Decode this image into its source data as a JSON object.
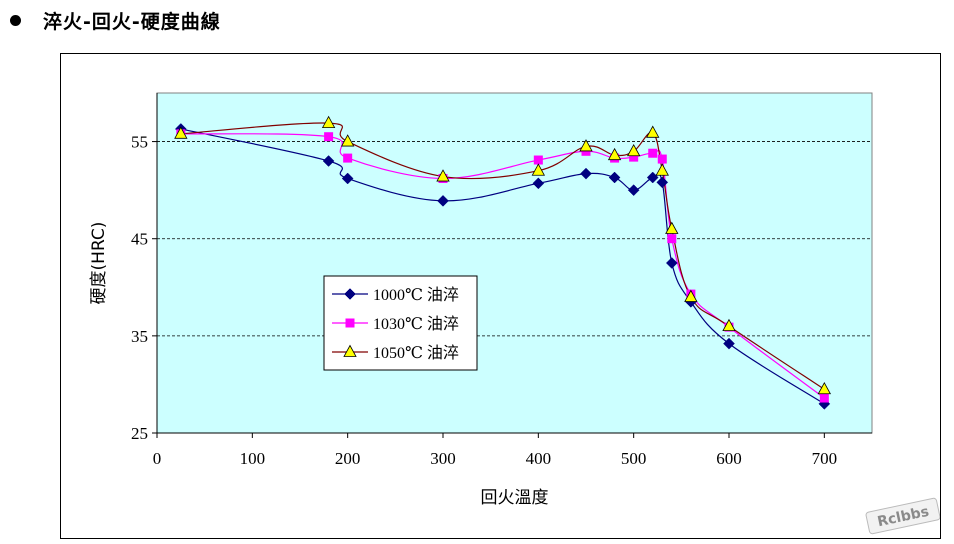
{
  "heading": {
    "text": "淬火-回火-硬度曲線"
  },
  "watermark": {
    "text": "Rclbbs"
  },
  "chart_data": {
    "type": "line",
    "title": "",
    "xlabel": "回火溫度",
    "ylabel": "硬度(HRC)",
    "xlim": [
      0,
      750
    ],
    "ylim": [
      25,
      60
    ],
    "xticks": [
      0,
      100,
      200,
      300,
      400,
      500,
      600,
      700
    ],
    "yticks": [
      25,
      35,
      45,
      55
    ],
    "grid": "horizontal dashed",
    "legend_position": "left-center",
    "plot_background": "#ccffff",
    "series": [
      {
        "name": "1000℃ 油淬",
        "color": "#000080",
        "marker": "diamond",
        "x": [
          25,
          180,
          200,
          300,
          400,
          450,
          480,
          500,
          520,
          530,
          540,
          560,
          600,
          700
        ],
        "y": [
          56.3,
          53.0,
          51.2,
          48.9,
          50.7,
          51.7,
          51.3,
          50.0,
          51.3,
          50.8,
          42.5,
          38.5,
          34.2,
          28.0
        ]
      },
      {
        "name": "1030℃ 油淬",
        "color": "#ff00ff",
        "marker": "square",
        "x": [
          25,
          180,
          200,
          300,
          400,
          450,
          480,
          500,
          520,
          530,
          540,
          560,
          600,
          700
        ],
        "y": [
          55.8,
          55.5,
          53.3,
          51.2,
          53.1,
          54.0,
          53.3,
          53.4,
          53.8,
          53.2,
          45.0,
          39.3,
          35.9,
          28.6
        ]
      },
      {
        "name": "1050℃ 油淬",
        "color": "#800000",
        "marker": "triangle",
        "x": [
          25,
          180,
          200,
          300,
          400,
          450,
          480,
          500,
          520,
          530,
          540,
          560,
          600,
          700
        ],
        "y": [
          55.8,
          56.9,
          55.0,
          51.4,
          52.0,
          54.5,
          53.6,
          54.0,
          55.9,
          52.0,
          46.0,
          39.0,
          36.0,
          29.5
        ]
      }
    ]
  }
}
